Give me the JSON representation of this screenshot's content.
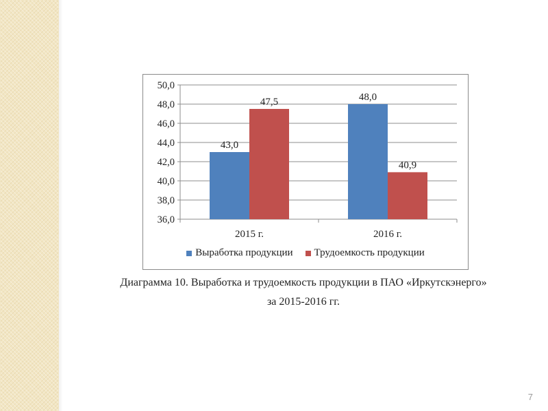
{
  "colors": {
    "series_1": "#4f81bd",
    "series_2": "#c0504d",
    "side_strip": "#f2e6c4"
  },
  "chart_data": {
    "type": "bar",
    "categories": [
      "2015 г.",
      "2016 г."
    ],
    "series": [
      {
        "name": "Выработка продукции",
        "values": [
          43.0,
          48.0
        ],
        "labels": [
          "43,0",
          "48,0"
        ]
      },
      {
        "name": "Трудоемкость продукции",
        "values": [
          47.5,
          40.9
        ],
        "labels": [
          "47,5",
          "40,9"
        ]
      }
    ],
    "ylim": [
      36.0,
      50.0
    ],
    "y_ticks": [
      36.0,
      38.0,
      40.0,
      42.0,
      44.0,
      46.0,
      48.0,
      50.0
    ],
    "y_tick_labels": [
      "36,0",
      "38,0",
      "40,0",
      "42,0",
      "44,0",
      "46,0",
      "48,0",
      "50,0"
    ],
    "grid": true,
    "legend_position": "bottom"
  },
  "caption": {
    "line1": "Диаграмма 10. Выработка и трудоемкость продукции в ПАО «Иркутскэнерго»",
    "line2": "за 2015-2016 гг."
  },
  "page_number": "7"
}
